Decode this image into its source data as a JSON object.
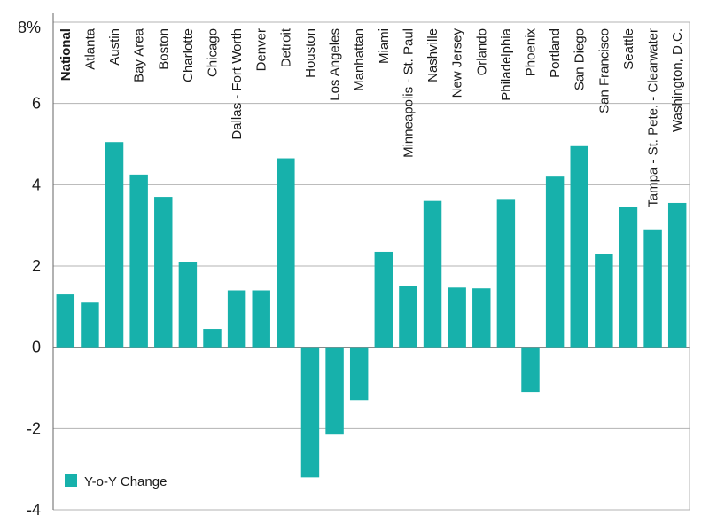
{
  "chart_data": {
    "type": "bar",
    "title": "",
    "xlabel": "",
    "ylabel": "",
    "ylim": [
      -4,
      8
    ],
    "y_ticks": [
      {
        "value": 8,
        "label": "8%"
      },
      {
        "value": 6,
        "label": "6"
      },
      {
        "value": 4,
        "label": "4"
      },
      {
        "value": 2,
        "label": "2"
      },
      {
        "value": 0,
        "label": "0"
      },
      {
        "value": -2,
        "label": "-2"
      },
      {
        "value": -4,
        "label": "-4"
      }
    ],
    "grid": true,
    "highlight_category": "National",
    "categories": [
      "National",
      "Atlanta",
      "Austin",
      "Bay Area",
      "Boston",
      "Charlotte",
      "Chicago",
      "Dallas - Fort Worth",
      "Denver",
      "Detroit",
      "Houston",
      "Los Angeles",
      "Manhattan",
      "Miami",
      "Minneapolis - St. Paul",
      "Nashville",
      "New Jersey",
      "Orlando",
      "Philadelphia",
      "Phoenix",
      "Portland",
      "San Diego",
      "San Francisco",
      "Seattle",
      "Tampa - St. Pete. - Clearwater",
      "Washington, D.C."
    ],
    "series": [
      {
        "name": "Y-o-Y Change",
        "values": [
          1.3,
          1.1,
          5.05,
          4.25,
          3.7,
          2.1,
          0.45,
          1.4,
          1.4,
          4.65,
          -3.2,
          -2.15,
          -1.3,
          2.35,
          1.5,
          3.6,
          1.47,
          1.45,
          3.65,
          -1.1,
          4.2,
          4.95,
          2.3,
          3.45,
          2.9,
          3.55
        ]
      }
    ],
    "legend": {
      "label": "Y-o-Y Change",
      "placement": "bottom-left"
    },
    "colors": {
      "bar": "#17b1ab",
      "highlight_text": "#17b1ab",
      "grid": "#b3b3b3",
      "zero_line": "#888888",
      "axis": "#666666",
      "text": "#1a1a1a"
    }
  }
}
